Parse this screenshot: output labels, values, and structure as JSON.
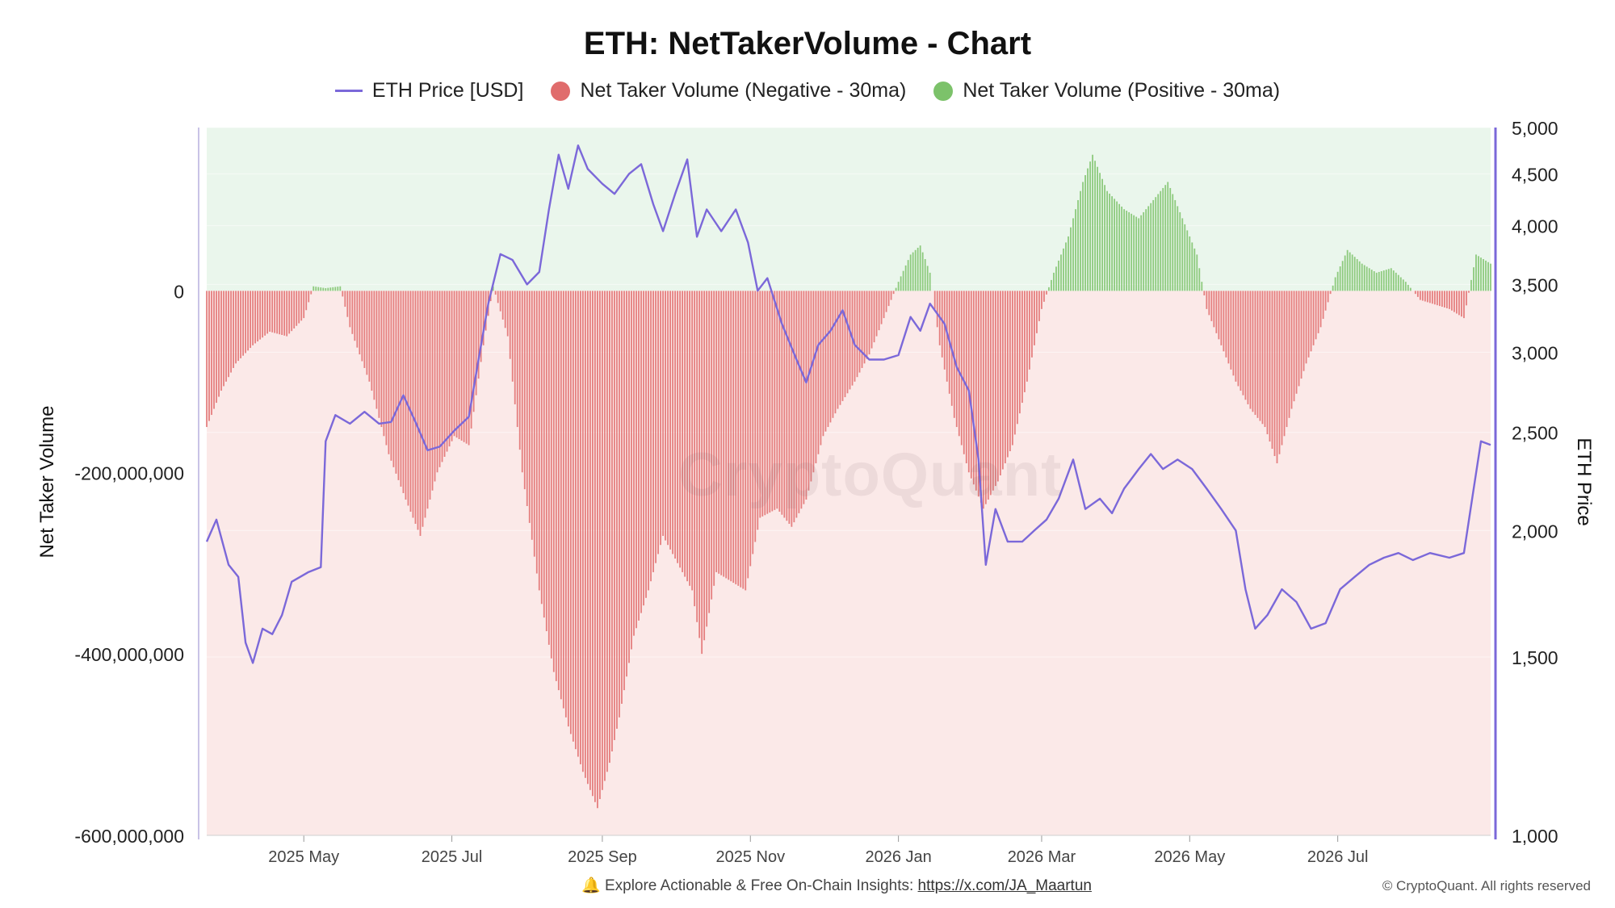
{
  "title": "ETH: NetTakerVolume - Chart",
  "legend": [
    {
      "label": "ETH Price [USD]",
      "color": "#7b68d9",
      "shape": "line"
    },
    {
      "label": "Net Taker Volume (Negative - 30ma)",
      "color": "#e06c6c",
      "shape": "dot"
    },
    {
      "label": "Net Taker Volume (Positive - 30ma)",
      "color": "#7cc26a",
      "shape": "dot"
    }
  ],
  "footer": {
    "bell_icon": "bell-icon",
    "text": "Explore Actionable & Free On-Chain Insights: ",
    "link": "https://x.com/JA_Maartun",
    "copyright": "© CryptoQuant. All rights reserved"
  },
  "watermark": "CryptoQuant",
  "chart_data": {
    "type": "bar",
    "title": "ETH: NetTakerVolume - Chart",
    "xlabel": "",
    "y_left_label": "Net Taker Volume",
    "y_right_label": "ETH Price",
    "y_left_lim": [
      -600000000,
      180000000
    ],
    "y_left_ticks": [
      0,
      -200000000,
      -400000000,
      -600000000
    ],
    "y_left_tick_labels": [
      "0",
      "-200,000,000",
      "-400,000,000",
      "-600,000,000"
    ],
    "y_right_scale": "log",
    "y_right_lim": [
      1000,
      5000
    ],
    "y_right_ticks": [
      1000,
      1500,
      2000,
      2500,
      3000,
      3500,
      4000,
      4500,
      5000
    ],
    "y_right_tick_labels": [
      "1,000",
      "1,500",
      "2,000",
      "2,500",
      "3,000",
      "3,500",
      "4,000",
      "4,500",
      "5,000"
    ],
    "x_start": "2025-03-22",
    "x_end": "2026-09-02",
    "x_ticks": [
      "2025-05-01",
      "2025-07-01",
      "2025-09-01",
      "2025-11-01",
      "2026-01-01",
      "2026-03-01",
      "2026-05-01",
      "2026-07-01"
    ],
    "x_tick_labels": [
      "2025 May",
      "2025 Jul",
      "2025 Sep",
      "2025 Nov",
      "2026 Jan",
      "2026 Mar",
      "2026 May",
      "2026 Jul"
    ],
    "grid": true,
    "legend_position": "top-center",
    "colors": {
      "price": "#7b68d9",
      "negative": "#e06c6c",
      "positive": "#7cc26a",
      "negative_zone": "#fbe9e8",
      "positive_zone": "#eaf6ec"
    },
    "series": [
      {
        "name": "Net Taker Volume (Negative - 30ma) / Net Taker Volume (Positive - 30ma)",
        "type": "bar",
        "axis": "left",
        "points": [
          [
            "2025-03-22",
            -150000000
          ],
          [
            "2025-03-28",
            -110000000
          ],
          [
            "2025-04-03",
            -80000000
          ],
          [
            "2025-04-10",
            -60000000
          ],
          [
            "2025-04-17",
            -45000000
          ],
          [
            "2025-04-24",
            -50000000
          ],
          [
            "2025-05-01",
            -30000000
          ],
          [
            "2025-05-05",
            5000000
          ],
          [
            "2025-05-10",
            3000000
          ],
          [
            "2025-05-16",
            5000000
          ],
          [
            "2025-05-20",
            -40000000
          ],
          [
            "2025-05-28",
            -100000000
          ],
          [
            "2025-06-05",
            -180000000
          ],
          [
            "2025-06-12",
            -230000000
          ],
          [
            "2025-06-18",
            -270000000
          ],
          [
            "2025-06-25",
            -200000000
          ],
          [
            "2025-07-02",
            -160000000
          ],
          [
            "2025-07-08",
            -170000000
          ],
          [
            "2025-07-14",
            -60000000
          ],
          [
            "2025-07-18",
            5000000
          ],
          [
            "2025-07-24",
            -50000000
          ],
          [
            "2025-07-30",
            -200000000
          ],
          [
            "2025-08-06",
            -330000000
          ],
          [
            "2025-08-12",
            -420000000
          ],
          [
            "2025-08-18",
            -480000000
          ],
          [
            "2025-08-24",
            -530000000
          ],
          [
            "2025-08-30",
            -570000000
          ],
          [
            "2025-09-04",
            -520000000
          ],
          [
            "2025-09-08",
            -470000000
          ],
          [
            "2025-09-14",
            -380000000
          ],
          [
            "2025-09-20",
            -330000000
          ],
          [
            "2025-09-26",
            -270000000
          ],
          [
            "2025-10-02",
            -300000000
          ],
          [
            "2025-10-08",
            -330000000
          ],
          [
            "2025-10-12",
            -400000000
          ],
          [
            "2025-10-18",
            -310000000
          ],
          [
            "2025-10-24",
            -320000000
          ],
          [
            "2025-10-30",
            -330000000
          ],
          [
            "2025-11-05",
            -250000000
          ],
          [
            "2025-11-12",
            -240000000
          ],
          [
            "2025-11-18",
            -260000000
          ],
          [
            "2025-11-24",
            -230000000
          ],
          [
            "2025-12-01",
            -160000000
          ],
          [
            "2025-12-07",
            -130000000
          ],
          [
            "2025-12-14",
            -100000000
          ],
          [
            "2025-12-20",
            -70000000
          ],
          [
            "2025-12-26",
            -30000000
          ],
          [
            "2026-01-01",
            10000000
          ],
          [
            "2026-01-06",
            40000000
          ],
          [
            "2026-01-10",
            50000000
          ],
          [
            "2026-01-14",
            20000000
          ],
          [
            "2026-01-18",
            -60000000
          ],
          [
            "2026-01-24",
            -140000000
          ],
          [
            "2026-01-30",
            -200000000
          ],
          [
            "2026-02-05",
            -240000000
          ],
          [
            "2026-02-11",
            -210000000
          ],
          [
            "2026-02-17",
            -170000000
          ],
          [
            "2026-02-23",
            -100000000
          ],
          [
            "2026-03-01",
            -20000000
          ],
          [
            "2026-03-06",
            20000000
          ],
          [
            "2026-03-12",
            60000000
          ],
          [
            "2026-03-18",
            120000000
          ],
          [
            "2026-03-22",
            150000000
          ],
          [
            "2026-03-28",
            110000000
          ],
          [
            "2026-04-04",
            90000000
          ],
          [
            "2026-04-10",
            80000000
          ],
          [
            "2026-04-16",
            100000000
          ],
          [
            "2026-04-22",
            120000000
          ],
          [
            "2026-04-28",
            80000000
          ],
          [
            "2026-05-04",
            40000000
          ],
          [
            "2026-05-08",
            -20000000
          ],
          [
            "2026-05-14",
            -60000000
          ],
          [
            "2026-05-20",
            -100000000
          ],
          [
            "2026-05-26",
            -130000000
          ],
          [
            "2026-06-01",
            -150000000
          ],
          [
            "2026-06-06",
            -190000000
          ],
          [
            "2026-06-12",
            -130000000
          ],
          [
            "2026-06-18",
            -80000000
          ],
          [
            "2026-06-24",
            -40000000
          ],
          [
            "2026-06-30",
            15000000
          ],
          [
            "2026-07-05",
            45000000
          ],
          [
            "2026-07-11",
            30000000
          ],
          [
            "2026-07-17",
            20000000
          ],
          [
            "2026-07-23",
            25000000
          ],
          [
            "2026-07-29",
            10000000
          ],
          [
            "2026-08-04",
            -10000000
          ],
          [
            "2026-08-10",
            -15000000
          ],
          [
            "2026-08-16",
            -20000000
          ],
          [
            "2026-08-22",
            -30000000
          ],
          [
            "2026-08-27",
            40000000
          ],
          [
            "2026-09-02",
            30000000
          ]
        ]
      },
      {
        "name": "ETH Price [USD]",
        "type": "line",
        "axis": "right",
        "points": [
          [
            "2025-03-22",
            1950
          ],
          [
            "2025-03-26",
            2050
          ],
          [
            "2025-03-31",
            1850
          ],
          [
            "2025-04-04",
            1800
          ],
          [
            "2025-04-07",
            1550
          ],
          [
            "2025-04-10",
            1480
          ],
          [
            "2025-04-14",
            1600
          ],
          [
            "2025-04-18",
            1580
          ],
          [
            "2025-04-22",
            1650
          ],
          [
            "2025-04-26",
            1780
          ],
          [
            "2025-05-03",
            1820
          ],
          [
            "2025-05-08",
            1840
          ],
          [
            "2025-05-10",
            2450
          ],
          [
            "2025-05-14",
            2600
          ],
          [
            "2025-05-20",
            2550
          ],
          [
            "2025-05-26",
            2620
          ],
          [
            "2025-06-01",
            2550
          ],
          [
            "2025-06-06",
            2560
          ],
          [
            "2025-06-11",
            2720
          ],
          [
            "2025-06-16",
            2560
          ],
          [
            "2025-06-21",
            2400
          ],
          [
            "2025-06-26",
            2420
          ],
          [
            "2025-07-02",
            2510
          ],
          [
            "2025-07-08",
            2590
          ],
          [
            "2025-07-12",
            2950
          ],
          [
            "2025-07-16",
            3350
          ],
          [
            "2025-07-21",
            3750
          ],
          [
            "2025-07-26",
            3700
          ],
          [
            "2025-08-01",
            3500
          ],
          [
            "2025-08-06",
            3600
          ],
          [
            "2025-08-10",
            4150
          ],
          [
            "2025-08-14",
            4700
          ],
          [
            "2025-08-18",
            4350
          ],
          [
            "2025-08-22",
            4800
          ],
          [
            "2025-08-26",
            4550
          ],
          [
            "2025-09-01",
            4400
          ],
          [
            "2025-09-06",
            4300
          ],
          [
            "2025-09-12",
            4500
          ],
          [
            "2025-09-17",
            4600
          ],
          [
            "2025-09-22",
            4200
          ],
          [
            "2025-09-26",
            3950
          ],
          [
            "2025-10-01",
            4300
          ],
          [
            "2025-10-06",
            4650
          ],
          [
            "2025-10-10",
            3900
          ],
          [
            "2025-10-14",
            4150
          ],
          [
            "2025-10-20",
            3950
          ],
          [
            "2025-10-26",
            4150
          ],
          [
            "2025-10-31",
            3850
          ],
          [
            "2025-11-04",
            3450
          ],
          [
            "2025-11-08",
            3550
          ],
          [
            "2025-11-14",
            3200
          ],
          [
            "2025-11-20",
            2950
          ],
          [
            "2025-11-24",
            2800
          ],
          [
            "2025-11-29",
            3050
          ],
          [
            "2025-12-04",
            3150
          ],
          [
            "2025-12-09",
            3300
          ],
          [
            "2025-12-14",
            3050
          ],
          [
            "2025-12-20",
            2950
          ],
          [
            "2025-12-26",
            2950
          ],
          [
            "2026-01-01",
            2980
          ],
          [
            "2026-01-06",
            3250
          ],
          [
            "2026-01-10",
            3150
          ],
          [
            "2026-01-14",
            3350
          ],
          [
            "2026-01-20",
            3200
          ],
          [
            "2026-01-25",
            2900
          ],
          [
            "2026-01-30",
            2750
          ],
          [
            "2026-02-03",
            2350
          ],
          [
            "2026-02-06",
            1850
          ],
          [
            "2026-02-10",
            2100
          ],
          [
            "2026-02-15",
            1950
          ],
          [
            "2026-02-21",
            1950
          ],
          [
            "2026-02-26",
            2000
          ],
          [
            "2026-03-03",
            2050
          ],
          [
            "2026-03-08",
            2150
          ],
          [
            "2026-03-14",
            2350
          ],
          [
            "2026-03-19",
            2100
          ],
          [
            "2026-03-25",
            2150
          ],
          [
            "2026-03-30",
            2080
          ],
          [
            "2026-04-04",
            2200
          ],
          [
            "2026-04-10",
            2300
          ],
          [
            "2026-04-15",
            2380
          ],
          [
            "2026-04-20",
            2300
          ],
          [
            "2026-04-26",
            2350
          ],
          [
            "2026-05-02",
            2300
          ],
          [
            "2026-05-08",
            2200
          ],
          [
            "2026-05-14",
            2100
          ],
          [
            "2026-05-20",
            2000
          ],
          [
            "2026-05-24",
            1750
          ],
          [
            "2026-05-28",
            1600
          ],
          [
            "2026-06-02",
            1650
          ],
          [
            "2026-06-08",
            1750
          ],
          [
            "2026-06-14",
            1700
          ],
          [
            "2026-06-20",
            1600
          ],
          [
            "2026-06-26",
            1620
          ],
          [
            "2026-07-02",
            1750
          ],
          [
            "2026-07-08",
            1800
          ],
          [
            "2026-07-14",
            1850
          ],
          [
            "2026-07-20",
            1880
          ],
          [
            "2026-07-26",
            1900
          ],
          [
            "2026-08-01",
            1870
          ],
          [
            "2026-08-08",
            1900
          ],
          [
            "2026-08-16",
            1880
          ],
          [
            "2026-08-22",
            1900
          ],
          [
            "2026-08-26",
            2200
          ],
          [
            "2026-08-29",
            2450
          ],
          [
            "2026-09-02",
            2430
          ]
        ]
      }
    ]
  }
}
